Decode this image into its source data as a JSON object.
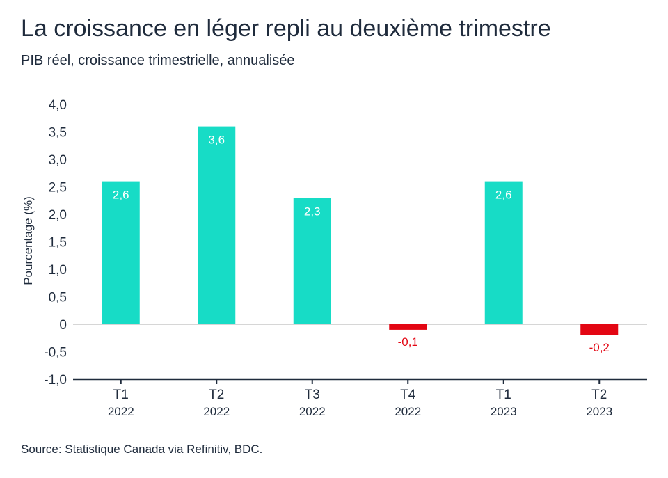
{
  "title": "La croissance en léger repli au deuxième trimestre",
  "subtitle": "PIB réel, croissance trimestrielle, annualisée",
  "source": "Source: Statistique Canada via Refinitiv, BDC.",
  "colors": {
    "positive": "#17dcc6",
    "negative": "#e30613",
    "axis": "#1f2b3c",
    "zero_line": "#c9c9c9",
    "label_on_bar": "#ffffff"
  },
  "chart_data": {
    "type": "bar",
    "ylabel": "Pourcentage (%)",
    "xlabel": "",
    "ylim": [
      -1.0,
      4.0
    ],
    "yticks": [
      "4,0",
      "3,5",
      "3,0",
      "2,5",
      "2,0",
      "1,5",
      "1,0",
      "0,5",
      "0",
      "-0,5",
      "-1,0"
    ],
    "ytick_values": [
      4.0,
      3.5,
      3.0,
      2.5,
      2.0,
      1.5,
      1.0,
      0.5,
      0,
      -0.5,
      -1.0
    ],
    "categories": [
      {
        "quarter": "T1",
        "year": "2022"
      },
      {
        "quarter": "T2",
        "year": "2022"
      },
      {
        "quarter": "T3",
        "year": "2022"
      },
      {
        "quarter": "T4",
        "year": "2022"
      },
      {
        "quarter": "T1",
        "year": "2023"
      },
      {
        "quarter": "T2",
        "year": "2023"
      }
    ],
    "values": [
      2.6,
      3.6,
      2.3,
      -0.1,
      2.6,
      -0.2
    ],
    "value_labels": [
      "2,6",
      "3,6",
      "2,3",
      "-0,1",
      "2,6",
      "-0,2"
    ],
    "grid": false,
    "legend": "none"
  }
}
